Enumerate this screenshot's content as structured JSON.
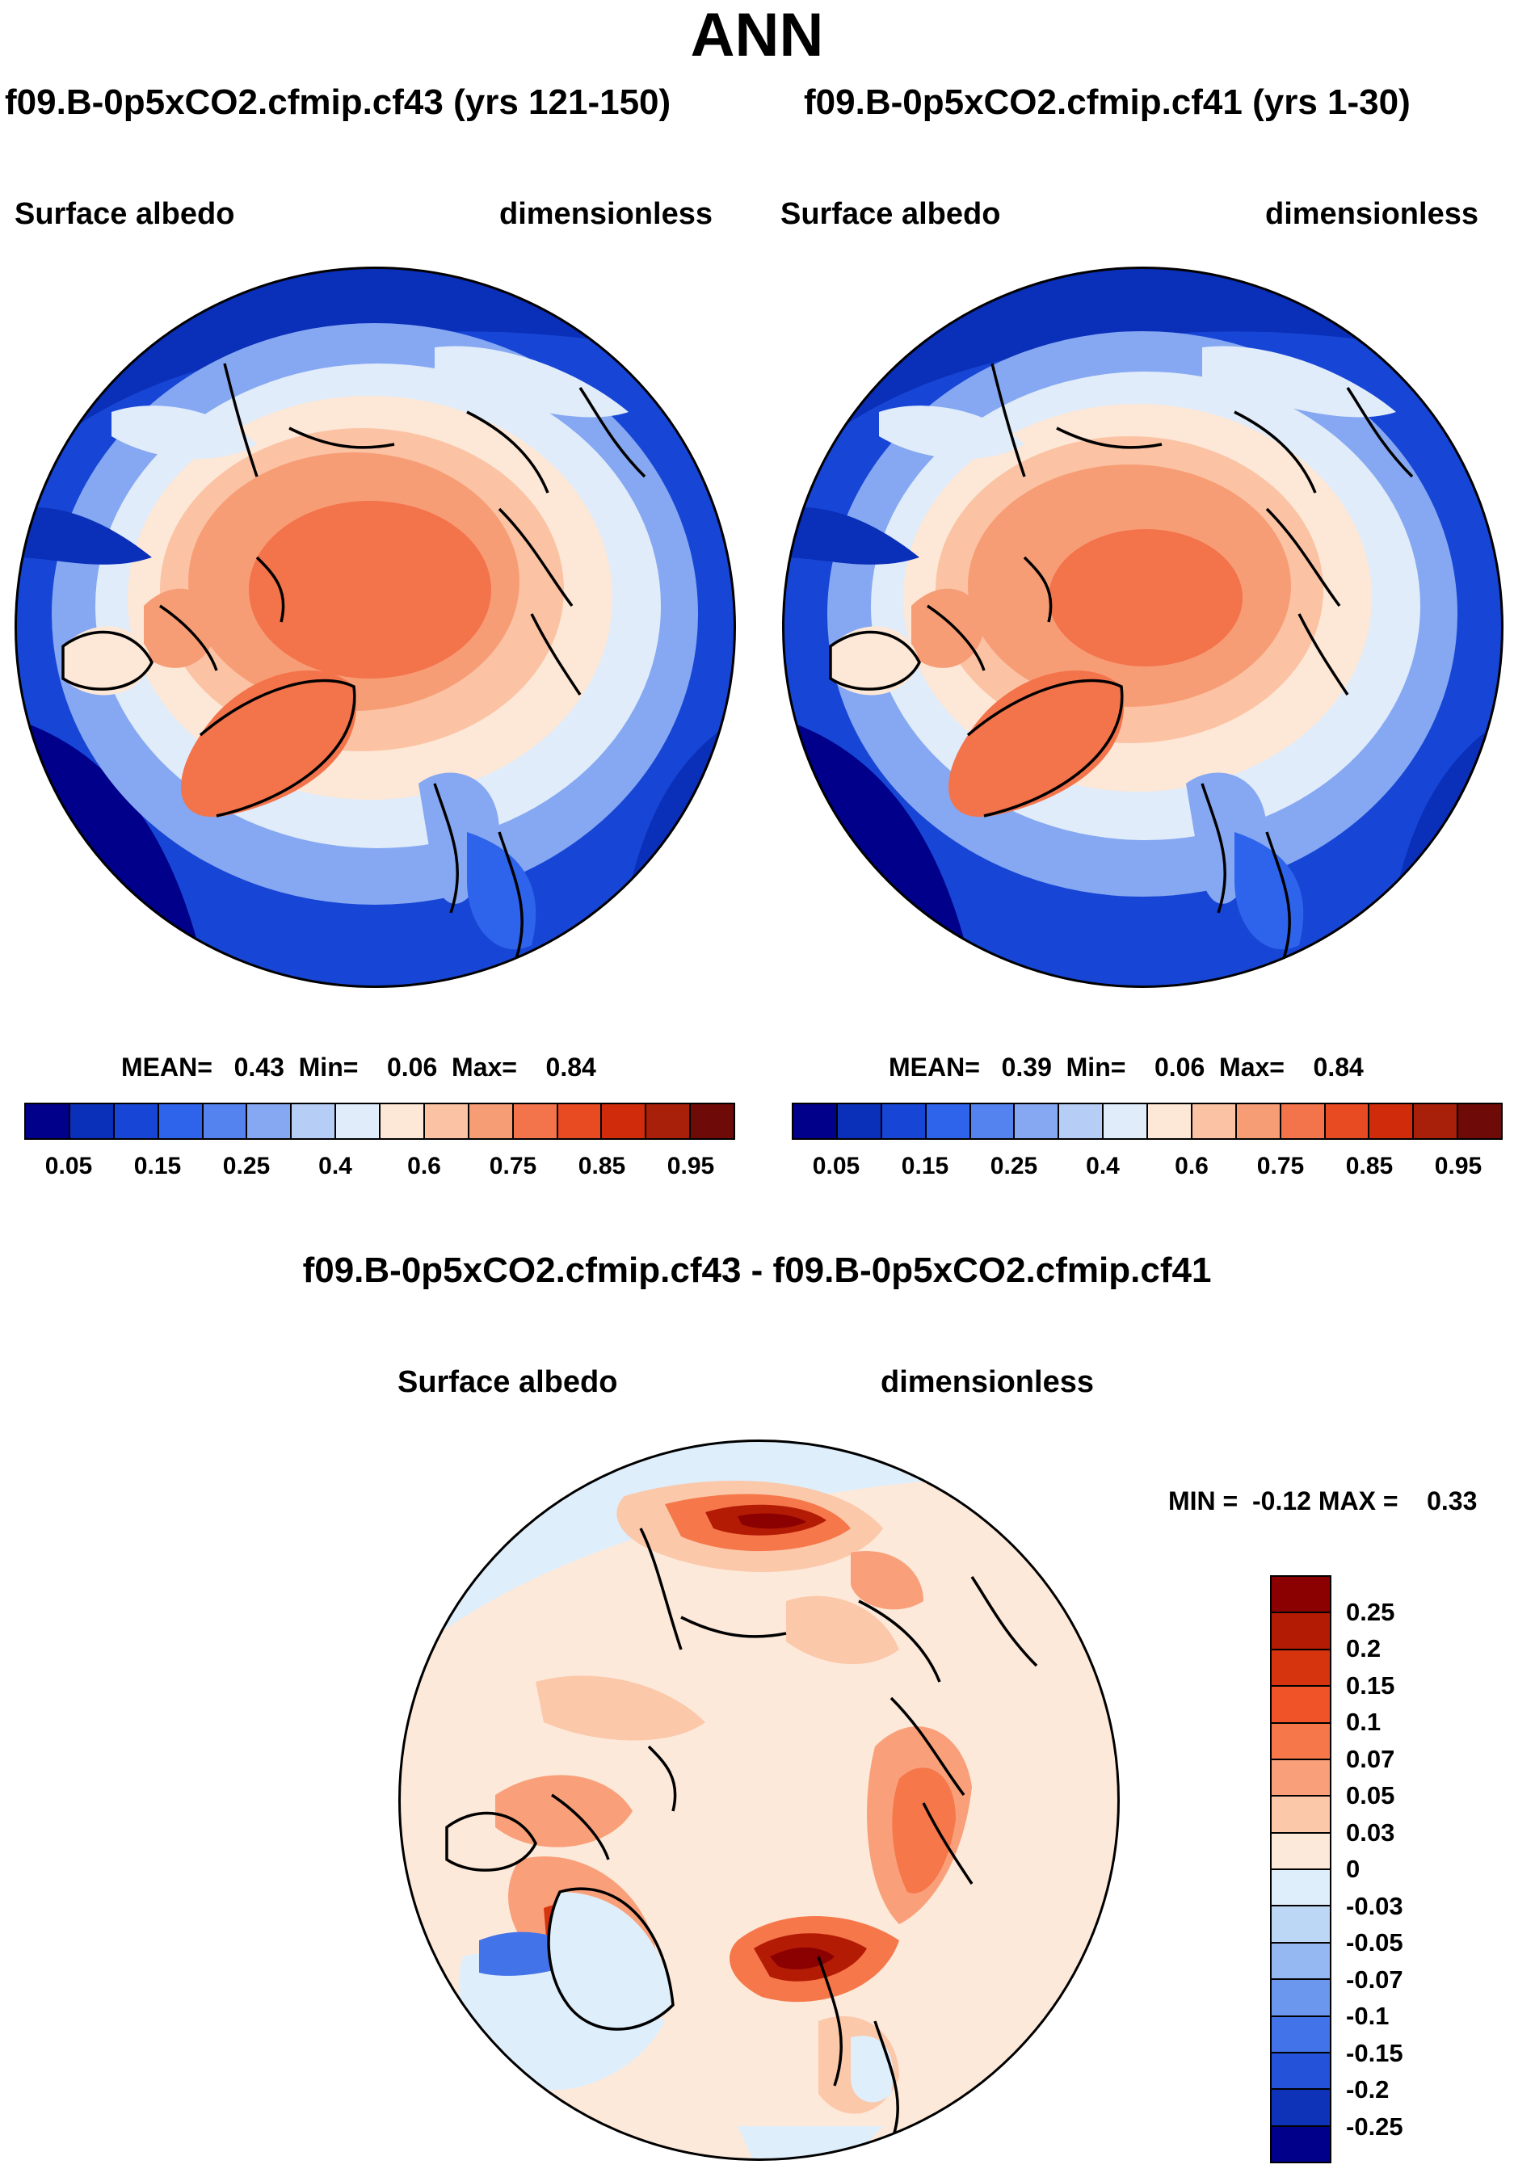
{
  "title": "ANN",
  "panels": [
    {
      "case": "f09.B-0p5xCO2.cfmip.cf43 (yrs 121-150)",
      "variable": "Surface albedo",
      "units": "dimensionless",
      "stats": "MEAN=   0.43  Min=    0.06  Max=    0.84"
    },
    {
      "case": "f09.B-0p5xCO2.cfmip.cf41 (yrs 1-30)",
      "variable": "Surface albedo",
      "units": "dimensionless",
      "stats": "MEAN=   0.39  Min=    0.06  Max=    0.84"
    }
  ],
  "difference": {
    "title": "f09.B-0p5xCO2.cfmip.cf43 - f09.B-0p5xCO2.cfmip.cf41",
    "variable": "Surface albedo",
    "units": "dimensionless",
    "stats": "MIN =  -0.12 MAX =    0.33"
  },
  "chart_data": [
    {
      "type": "heatmap",
      "projection": "north polar stereographic",
      "title": "f09.B-0p5xCO2.cfmip.cf43 (yrs 121-150)",
      "field": "Surface albedo",
      "units": "dimensionless",
      "mean": 0.43,
      "min": 0.06,
      "max": 0.84,
      "colorbar_labels": [
        "0.05",
        "0.15",
        "0.25",
        "0.4",
        "0.6",
        "0.75",
        "0.85",
        "0.95"
      ],
      "colors": [
        "#00008b",
        "#0a2fb8",
        "#1746d6",
        "#2e63ec",
        "#5483f0",
        "#86a8f2",
        "#b6cdf5",
        "#e0ecfa",
        "#fde7d6",
        "#fbc3a4",
        "#f79d76",
        "#f3734b",
        "#e84a22",
        "#d02c0c",
        "#a8200a",
        "#6e0a07"
      ]
    },
    {
      "type": "heatmap",
      "projection": "north polar stereographic",
      "title": "f09.B-0p5xCO2.cfmip.cf41 (yrs 1-30)",
      "field": "Surface albedo",
      "units": "dimensionless",
      "mean": 0.39,
      "min": 0.06,
      "max": 0.84,
      "colorbar_labels": [
        "0.05",
        "0.15",
        "0.25",
        "0.4",
        "0.6",
        "0.75",
        "0.85",
        "0.95"
      ],
      "colors": [
        "#00008b",
        "#0a2fb8",
        "#1746d6",
        "#2e63ec",
        "#5483f0",
        "#86a8f2",
        "#b6cdf5",
        "#e0ecfa",
        "#fde7d6",
        "#fbc3a4",
        "#f79d76",
        "#f3734b",
        "#e84a22",
        "#d02c0c",
        "#a8200a",
        "#6e0a07"
      ]
    },
    {
      "type": "heatmap",
      "projection": "north polar stereographic",
      "title": "f09.B-0p5xCO2.cfmip.cf43 - f09.B-0p5xCO2.cfmip.cf41",
      "field": "Surface albedo",
      "units": "dimensionless",
      "min": -0.12,
      "max": 0.33,
      "colorbar_labels": [
        "0.25",
        "0.2",
        "0.15",
        "0.1",
        "0.07",
        "0.05",
        "0.03",
        "0",
        "-0.03",
        "-0.05",
        "-0.07",
        "-0.1",
        "-0.15",
        "-0.2",
        "-0.25"
      ],
      "colors": [
        "#8b0000",
        "#b31b05",
        "#d6340f",
        "#ef5327",
        "#f5774a",
        "#f9a07a",
        "#fbc8aa",
        "#fde9da",
        "#dfeefb",
        "#bcd6f6",
        "#95b8f2",
        "#6c97ee",
        "#4373e8",
        "#2452d8",
        "#0e33b8",
        "#00008b"
      ]
    }
  ]
}
